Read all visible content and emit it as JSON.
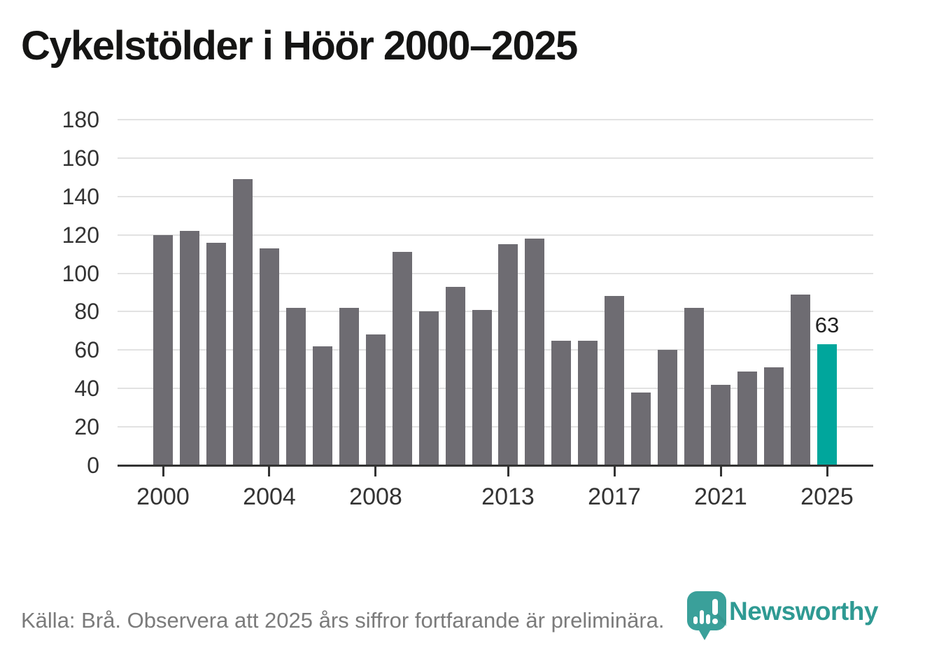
{
  "title": "Cykelstölder i Höör 2000–2025",
  "footer": {
    "source_note": "Källa: Brå. Observera att 2025 års siffror fortfarande är preliminära."
  },
  "branding": {
    "name": "Newsworthy",
    "icon": "newsworthy-speech-bubble-barchart-icon",
    "brand_color": "#2f9a93",
    "icon_color": "#3aa09a"
  },
  "colors": {
    "bar": "#6e6c72",
    "highlight_bar": "#00a69c",
    "gridline": "#e2e2e2",
    "axis": "#333333",
    "title_text": "#151514",
    "tick_text": "#333333",
    "footer_text": "#7b7b7b"
  },
  "chart_data": {
    "type": "bar",
    "title": "Cykelstölder i Höör 2000–2025",
    "xlabel": "",
    "ylabel": "",
    "ylim": [
      0,
      180
    ],
    "grid": true,
    "x": [
      2000,
      2001,
      2002,
      2003,
      2004,
      2005,
      2006,
      2007,
      2008,
      2009,
      2010,
      2011,
      2012,
      2013,
      2014,
      2015,
      2016,
      2017,
      2018,
      2019,
      2020,
      2021,
      2022,
      2023,
      2024,
      2025
    ],
    "values": [
      120,
      122,
      116,
      149,
      113,
      82,
      62,
      82,
      68,
      111,
      80,
      93,
      81,
      115,
      118,
      65,
      65,
      88,
      38,
      60,
      82,
      42,
      49,
      51,
      89,
      63
    ],
    "yticks": [
      0,
      20,
      40,
      60,
      80,
      100,
      120,
      140,
      160,
      180
    ],
    "xtick_years": [
      2000,
      2004,
      2008,
      2013,
      2017,
      2021,
      2025
    ],
    "highlight": {
      "year": 2025,
      "value_label": "63"
    }
  }
}
